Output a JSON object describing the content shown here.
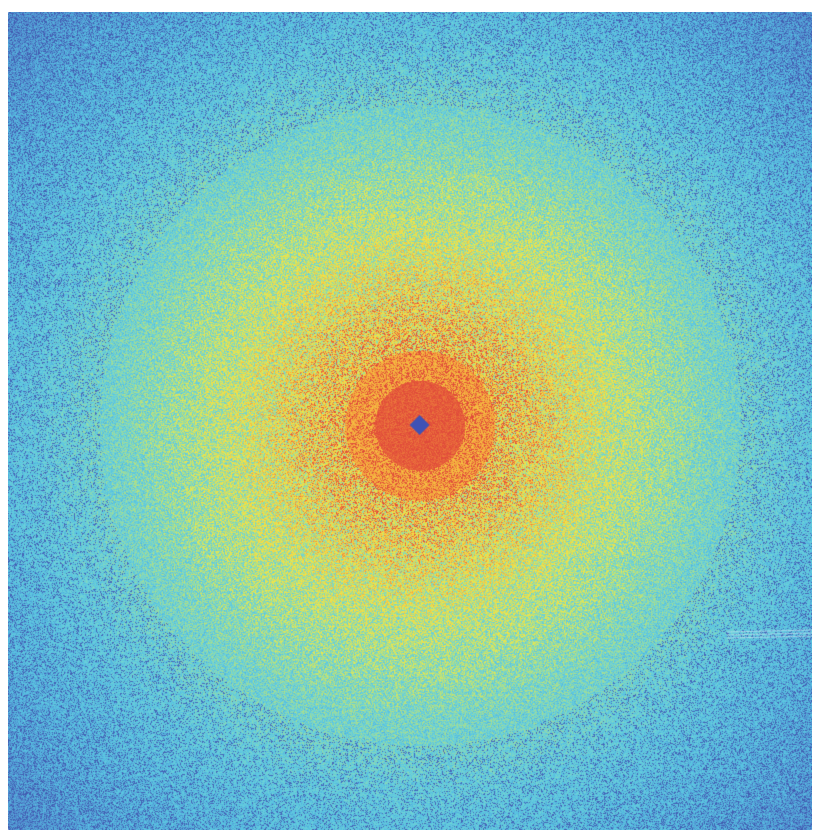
{
  "image": {
    "kind": "speckle-diffraction-pattern",
    "colormap": [
      "#3a4aa3",
      "#4d74c4",
      "#57c2e3",
      "#62cfe8",
      "#7fd6b8",
      "#c7e37a",
      "#f0ea48",
      "#f7c542",
      "#f08a3c",
      "#e5533a",
      "#3f52b5"
    ],
    "center_color": "#3f52b5",
    "background_color": "#ffffff"
  }
}
